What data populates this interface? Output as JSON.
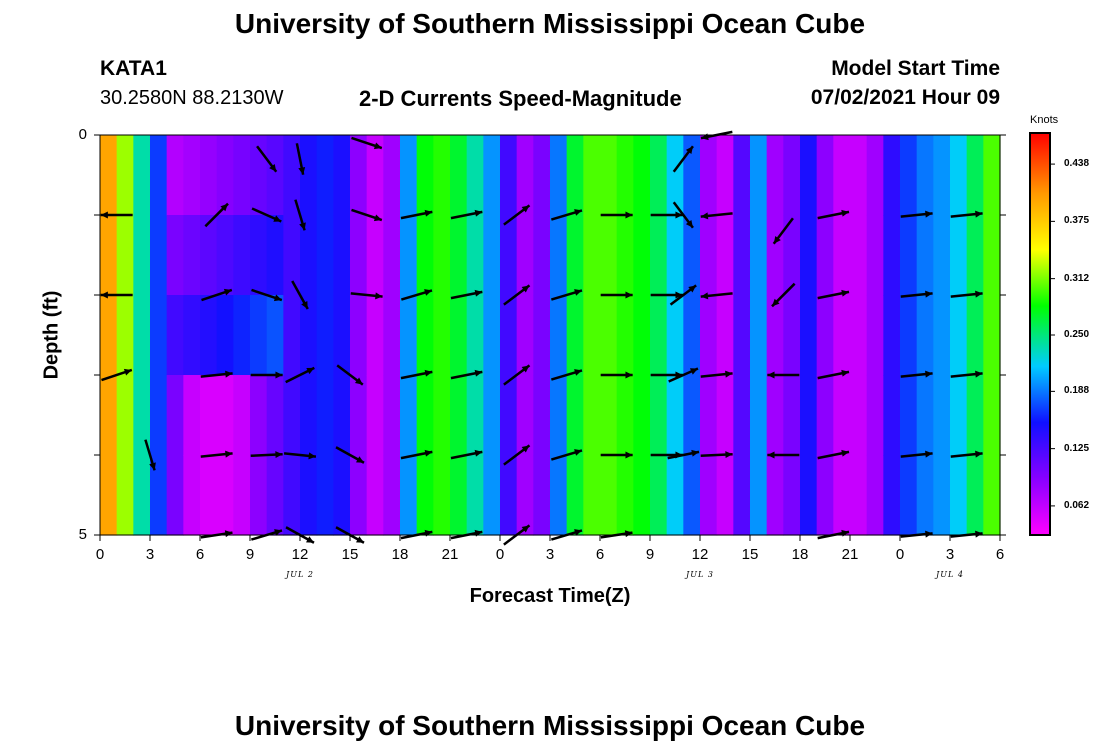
{
  "page": {
    "title_top": "University of Southern Mississippi Ocean Cube",
    "title_bottom": "University of Southern Mississippi Ocean Cube",
    "station": "KATA1",
    "coords": "30.2580N  88.2130W",
    "plot_title": "2-D Currents Speed-Magnitude",
    "model_start_label": "Model Start Time",
    "model_start_value": "07/02/2021 Hour 09"
  },
  "chart_data": {
    "type": "heatmap",
    "title": "2-D Currents Speed-Magnitude",
    "xlabel": "Forecast Time(Z)",
    "ylabel": "Depth (ft)",
    "x_tick_labels": [
      "0",
      "3",
      "6",
      "9",
      "12",
      "15",
      "18",
      "21",
      "0",
      "3",
      "6",
      "9",
      "12",
      "15",
      "18",
      "21",
      "0",
      "3",
      "6"
    ],
    "day_labels": [
      {
        "label": "JUL 2",
        "at_tick": 6
      },
      {
        "label": "JUL 3",
        "at_tick": 14
      },
      {
        "label": "JUL 4",
        "at_tick": 19
      }
    ],
    "y_tick_labels": [
      "0",
      "5"
    ],
    "ylim": [
      0,
      5
    ],
    "xlim_hours": [
      0,
      54
    ],
    "colorbar": {
      "title": "Knots",
      "ticks": [
        "0.438",
        "0.375",
        "0.312",
        "0.250",
        "0.188",
        "0.125",
        "0.062"
      ],
      "range": [
        0.03,
        0.47
      ],
      "colors_low_to_high": [
        "#ff00ff",
        "#8800ff",
        "#1010ff",
        "#00ccff",
        "#00ff00",
        "#ffff00",
        "#ff9900",
        "#ff0000"
      ]
    },
    "speed_profile_knots": [
      0.4,
      0.32,
      0.24,
      0.17,
      0.1,
      0.06,
      0.05,
      0.05,
      0.06,
      0.09,
      0.11,
      0.13,
      0.15,
      0.16,
      0.15,
      0.09,
      0.06,
      0.08,
      0.2,
      0.28,
      0.29,
      0.27,
      0.24,
      0.2,
      0.13,
      0.08,
      0.1,
      0.19,
      0.27,
      0.3,
      0.3,
      0.29,
      0.28,
      0.26,
      0.22,
      0.18,
      0.08,
      0.06,
      0.12,
      0.2,
      0.08,
      0.1,
      0.15,
      0.09,
      0.06,
      0.06,
      0.08,
      0.14,
      0.17,
      0.19,
      0.2,
      0.22,
      0.26,
      0.3
    ],
    "low_pocket": {
      "x_hours": [
        4,
        11
      ],
      "depth_ft": [
        0,
        2.5
      ],
      "speed_knots": 0.07
    },
    "velocity_vectors": [
      {
        "hour": 1,
        "depth_ft": 1,
        "u": -1.0,
        "v": 0.0
      },
      {
        "hour": 1,
        "depth_ft": 2,
        "u": -1.0,
        "v": 0.0
      },
      {
        "hour": 1,
        "depth_ft": 3,
        "u": 0.9,
        "v": 0.3
      },
      {
        "hour": 3,
        "depth_ft": 4,
        "u": 0.3,
        "v": -1.0
      },
      {
        "hour": 7,
        "depth_ft": 1,
        "u": 0.7,
        "v": 0.7
      },
      {
        "hour": 7,
        "depth_ft": 2,
        "u": 0.9,
        "v": 0.3
      },
      {
        "hour": 7,
        "depth_ft": 3,
        "u": 1.0,
        "v": 0.1
      },
      {
        "hour": 7,
        "depth_ft": 4,
        "u": 1.0,
        "v": 0.1
      },
      {
        "hour": 7,
        "depth_ft": 5,
        "u": 1.0,
        "v": 0.15
      },
      {
        "hour": 10,
        "depth_ft": 0.3,
        "u": 0.6,
        "v": -0.8
      },
      {
        "hour": 10,
        "depth_ft": 1,
        "u": 0.9,
        "v": -0.4
      },
      {
        "hour": 10,
        "depth_ft": 2,
        "u": 0.9,
        "v": -0.3
      },
      {
        "hour": 10,
        "depth_ft": 3,
        "u": 1.0,
        "v": 0.0
      },
      {
        "hour": 10,
        "depth_ft": 4,
        "u": 1.0,
        "v": 0.05
      },
      {
        "hour": 10,
        "depth_ft": 5,
        "u": 1.0,
        "v": 0.3
      },
      {
        "hour": 12,
        "depth_ft": 0.3,
        "u": 0.2,
        "v": -1.0
      },
      {
        "hour": 12,
        "depth_ft": 1,
        "u": 0.3,
        "v": -1.0
      },
      {
        "hour": 12,
        "depth_ft": 2,
        "u": 0.5,
        "v": -0.9
      },
      {
        "hour": 12,
        "depth_ft": 3,
        "u": 0.8,
        "v": 0.4
      },
      {
        "hour": 12,
        "depth_ft": 4,
        "u": 1.0,
        "v": -0.1
      },
      {
        "hour": 12,
        "depth_ft": 5,
        "u": 0.9,
        "v": -0.5
      },
      {
        "hour": 15,
        "depth_ft": 3,
        "u": 0.8,
        "v": -0.6
      },
      {
        "hour": 15,
        "depth_ft": 4,
        "u": 0.9,
        "v": -0.5
      },
      {
        "hour": 15,
        "depth_ft": 5,
        "u": 0.9,
        "v": -0.5
      },
      {
        "hour": 16,
        "depth_ft": 0.1,
        "u": 0.9,
        "v": -0.3
      },
      {
        "hour": 16,
        "depth_ft": 1,
        "u": 0.9,
        "v": -0.3
      },
      {
        "hour": 16,
        "depth_ft": 2,
        "u": 1.0,
        "v": -0.1
      },
      {
        "hour": 19,
        "depth_ft": 1,
        "u": 1.0,
        "v": 0.2
      },
      {
        "hour": 19,
        "depth_ft": 2,
        "u": 1.0,
        "v": 0.3
      },
      {
        "hour": 19,
        "depth_ft": 3,
        "u": 1.0,
        "v": 0.2
      },
      {
        "hour": 19,
        "depth_ft": 4,
        "u": 1.0,
        "v": 0.2
      },
      {
        "hour": 19,
        "depth_ft": 5,
        "u": 1.0,
        "v": 0.2
      },
      {
        "hour": 22,
        "depth_ft": 1,
        "u": 1.0,
        "v": 0.2
      },
      {
        "hour": 22,
        "depth_ft": 2,
        "u": 1.0,
        "v": 0.2
      },
      {
        "hour": 22,
        "depth_ft": 3,
        "u": 1.0,
        "v": 0.2
      },
      {
        "hour": 22,
        "depth_ft": 4,
        "u": 1.0,
        "v": 0.2
      },
      {
        "hour": 22,
        "depth_ft": 5,
        "u": 1.0,
        "v": 0.2
      },
      {
        "hour": 25,
        "depth_ft": 1,
        "u": 0.8,
        "v": 0.6
      },
      {
        "hour": 25,
        "depth_ft": 2,
        "u": 0.8,
        "v": 0.6
      },
      {
        "hour": 25,
        "depth_ft": 3,
        "u": 0.8,
        "v": 0.6
      },
      {
        "hour": 25,
        "depth_ft": 4,
        "u": 0.8,
        "v": 0.6
      },
      {
        "hour": 25,
        "depth_ft": 5,
        "u": 0.8,
        "v": 0.6
      },
      {
        "hour": 28,
        "depth_ft": 1,
        "u": 1.0,
        "v": 0.3
      },
      {
        "hour": 28,
        "depth_ft": 2,
        "u": 1.0,
        "v": 0.3
      },
      {
        "hour": 28,
        "depth_ft": 3,
        "u": 1.0,
        "v": 0.3
      },
      {
        "hour": 28,
        "depth_ft": 4,
        "u": 1.0,
        "v": 0.3
      },
      {
        "hour": 28,
        "depth_ft": 5,
        "u": 1.0,
        "v": 0.3
      },
      {
        "hour": 31,
        "depth_ft": 1,
        "u": 1.0,
        "v": 0.0
      },
      {
        "hour": 31,
        "depth_ft": 2,
        "u": 1.0,
        "v": 0.0
      },
      {
        "hour": 31,
        "depth_ft": 3,
        "u": 1.0,
        "v": 0.0
      },
      {
        "hour": 31,
        "depth_ft": 4,
        "u": 1.0,
        "v": 0.0
      },
      {
        "hour": 31,
        "depth_ft": 5,
        "u": 1.0,
        "v": 0.15
      },
      {
        "hour": 34,
        "depth_ft": 1,
        "u": 1.0,
        "v": 0.0
      },
      {
        "hour": 34,
        "depth_ft": 2,
        "u": 1.0,
        "v": 0.0
      },
      {
        "hour": 34,
        "depth_ft": 3,
        "u": 1.0,
        "v": 0.0
      },
      {
        "hour": 34,
        "depth_ft": 4,
        "u": 1.0,
        "v": 0.0
      },
      {
        "hour": 35,
        "depth_ft": 0.3,
        "u": 0.6,
        "v": 0.8
      },
      {
        "hour": 35,
        "depth_ft": 1,
        "u": 0.6,
        "v": -0.8
      },
      {
        "hour": 35,
        "depth_ft": 2,
        "u": 0.8,
        "v": 0.6
      },
      {
        "hour": 35,
        "depth_ft": 3,
        "u": 0.9,
        "v": 0.4
      },
      {
        "hour": 35,
        "depth_ft": 4,
        "u": 1.0,
        "v": 0.2
      },
      {
        "hour": 37,
        "depth_ft": 0.0,
        "u": -1.0,
        "v": -0.2
      },
      {
        "hour": 37,
        "depth_ft": 1,
        "u": -1.0,
        "v": -0.1
      },
      {
        "hour": 37,
        "depth_ft": 2,
        "u": -1.0,
        "v": -0.1
      },
      {
        "hour": 37,
        "depth_ft": 3,
        "u": 1.0,
        "v": 0.1
      },
      {
        "hour": 37,
        "depth_ft": 4,
        "u": 1.0,
        "v": 0.05
      },
      {
        "hour": 41,
        "depth_ft": 1.2,
        "u": -0.6,
        "v": -0.8
      },
      {
        "hour": 41,
        "depth_ft": 2,
        "u": -0.7,
        "v": -0.7
      },
      {
        "hour": 41,
        "depth_ft": 3,
        "u": -1.0,
        "v": 0.0
      },
      {
        "hour": 41,
        "depth_ft": 4,
        "u": -1.0,
        "v": 0.0
      },
      {
        "hour": 44,
        "depth_ft": 1,
        "u": 1.0,
        "v": 0.2
      },
      {
        "hour": 44,
        "depth_ft": 2,
        "u": 1.0,
        "v": 0.2
      },
      {
        "hour": 44,
        "depth_ft": 3,
        "u": 1.0,
        "v": 0.2
      },
      {
        "hour": 44,
        "depth_ft": 4,
        "u": 1.0,
        "v": 0.2
      },
      {
        "hour": 44,
        "depth_ft": 5,
        "u": 1.0,
        "v": 0.2
      },
      {
        "hour": 49,
        "depth_ft": 1,
        "u": 1.0,
        "v": 0.1
      },
      {
        "hour": 49,
        "depth_ft": 2,
        "u": 1.0,
        "v": 0.1
      },
      {
        "hour": 49,
        "depth_ft": 3,
        "u": 1.0,
        "v": 0.1
      },
      {
        "hour": 49,
        "depth_ft": 4,
        "u": 1.0,
        "v": 0.1
      },
      {
        "hour": 49,
        "depth_ft": 5,
        "u": 1.0,
        "v": 0.1
      },
      {
        "hour": 52,
        "depth_ft": 1,
        "u": 1.0,
        "v": 0.1
      },
      {
        "hour": 52,
        "depth_ft": 2,
        "u": 1.0,
        "v": 0.1
      },
      {
        "hour": 52,
        "depth_ft": 3,
        "u": 1.0,
        "v": 0.1
      },
      {
        "hour": 52,
        "depth_ft": 4,
        "u": 1.0,
        "v": 0.1
      },
      {
        "hour": 52,
        "depth_ft": 5,
        "u": 1.0,
        "v": 0.1
      }
    ]
  }
}
